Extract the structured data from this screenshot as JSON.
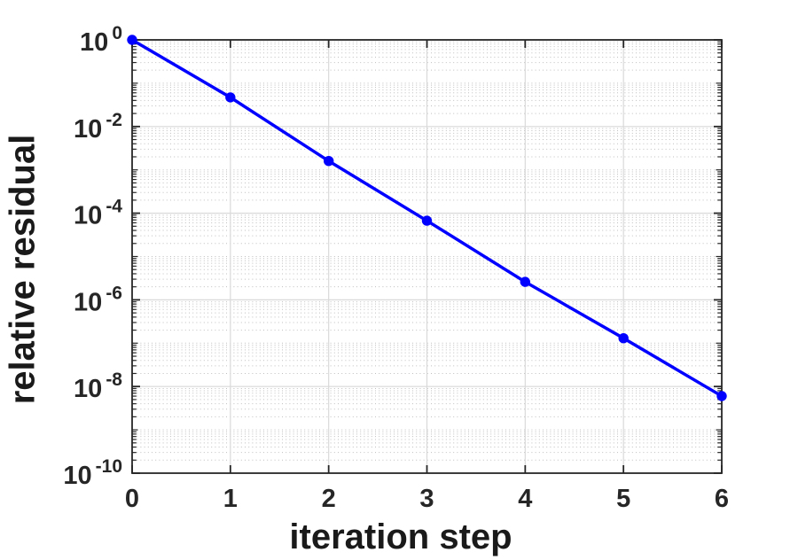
{
  "chart_data": {
    "type": "line",
    "title": "",
    "xlabel": "iteration step",
    "ylabel": "relative residual",
    "x": [
      0,
      1,
      2,
      3,
      4,
      5,
      6
    ],
    "y": [
      1,
      0.047,
      0.0016,
      6.7e-05,
      2.6e-06,
      1.3e-07,
      6e-09
    ],
    "series": [
      {
        "name": "relative residual",
        "color": "#0000ff",
        "marker": "filled-circle",
        "line_width": 3.5,
        "marker_radius": 5.7
      }
    ],
    "xlim": [
      0,
      6
    ],
    "ylim": [
      1e-10,
      1
    ],
    "x_tick_labels": [
      "0",
      "1",
      "2",
      "3",
      "4",
      "5",
      "6"
    ],
    "y_tick_base": "10",
    "y_tick_exponents": [
      "0",
      "-2",
      "-4",
      "-6",
      "-8",
      "-10"
    ],
    "grid": {
      "major_x": true,
      "major_y": true,
      "minor_y_dotted": true
    },
    "legend_position": "none",
    "scale": {
      "x": "linear",
      "y": "log10"
    }
  },
  "style": {
    "background": "#ffffff",
    "axis_color": "#262626",
    "tick_label_color": "#262626",
    "axis_label_color": "#1a1a1a",
    "grid_major_color": "#d9d9d9",
    "grid_minor_color": "#bfbfbf",
    "line_color": "#0000ff"
  }
}
